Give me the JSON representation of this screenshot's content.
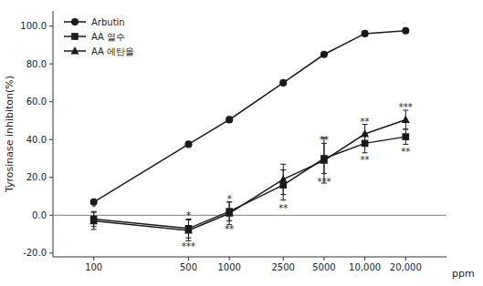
{
  "chart_data": {
    "type": "line",
    "log": "x",
    "grid": false,
    "legend": "upper left",
    "ylabel": "Tyrosinase inhibiton(%)",
    "xlabel": "ppm",
    "x": [
      100,
      500,
      1000,
      2500,
      5000,
      10000,
      20000
    ],
    "xlim": [
      50,
      40000
    ],
    "xticks": [
      100,
      500,
      1000,
      2500,
      5000,
      {
        "value": 10000,
        "label": "10,000"
      },
      {
        "value": 20000,
        "label": "20,000"
      }
    ],
    "ylim": [
      -22.0,
      108.0
    ],
    "yticks": [
      {
        "value": -20.0,
        "label": "-20.0"
      },
      {
        "value": 0.0,
        "label": "0.0"
      },
      {
        "value": 20.0,
        "label": "20.0"
      },
      {
        "value": 40.0,
        "label": "40.0"
      },
      {
        "value": 60.0,
        "label": "60.0"
      },
      {
        "value": 80.0,
        "label": "80.0"
      },
      {
        "value": 100.0,
        "label": "100.0"
      }
    ],
    "series": [
      {
        "name": "Arbutin",
        "color": "#1a1a1a",
        "marker": "circle",
        "values": [
          7.0,
          37.5,
          50.5,
          70.0,
          85.0,
          96.0,
          97.5
        ],
        "errors": [
          0.5,
          1.0,
          1.5,
          1.0,
          1.0,
          1.0,
          0.8
        ]
      },
      {
        "name": "AA 열수",
        "color": "#1a1a1a",
        "marker": "square",
        "values": [
          -2.0,
          -7.0,
          2.0,
          16.0,
          30.0,
          38.0,
          41.5
        ],
        "errors": [
          4.0,
          5.0,
          5.0,
          8.0,
          8.0,
          5.0,
          4.0
        ]
      },
      {
        "name": "AA 에탄올",
        "color": "#1a1a1a",
        "marker": "triangle",
        "values": [
          -3.0,
          -8.0,
          1.0,
          19.0,
          29.0,
          43.0,
          50.5
        ],
        "errors": [
          4.5,
          5.5,
          6.0,
          8.0,
          12.0,
          5.0,
          5.0
        ]
      }
    ],
    "reference_lines": [
      {
        "value": 0,
        "color": "gray"
      }
    ],
    "annotations": [
      {
        "text": "*",
        "x": 100,
        "y": 3.5
      },
      {
        "text": "***",
        "x": 500,
        "y": -14.5
      },
      {
        "text": "*",
        "x": 500,
        "y": -1.0
      },
      {
        "text": "**",
        "x": 1000,
        "y": -5.0
      },
      {
        "text": "*",
        "x": 1000,
        "y": 8.0
      },
      {
        "text": "**",
        "x": 2500,
        "y": 6.0
      },
      {
        "text": "***",
        "x": 5000,
        "y": 20.0
      },
      {
        "text": "**",
        "x": 5000,
        "y": 39.0
      },
      {
        "text": "**",
        "x": 10000,
        "y": 31.5
      },
      {
        "text": "**",
        "x": 10000,
        "y": 49.0
      },
      {
        "text": "**",
        "x": 20000,
        "y": 36.0
      },
      {
        "text": "***",
        "x": 20000,
        "y": 56.5
      }
    ]
  }
}
